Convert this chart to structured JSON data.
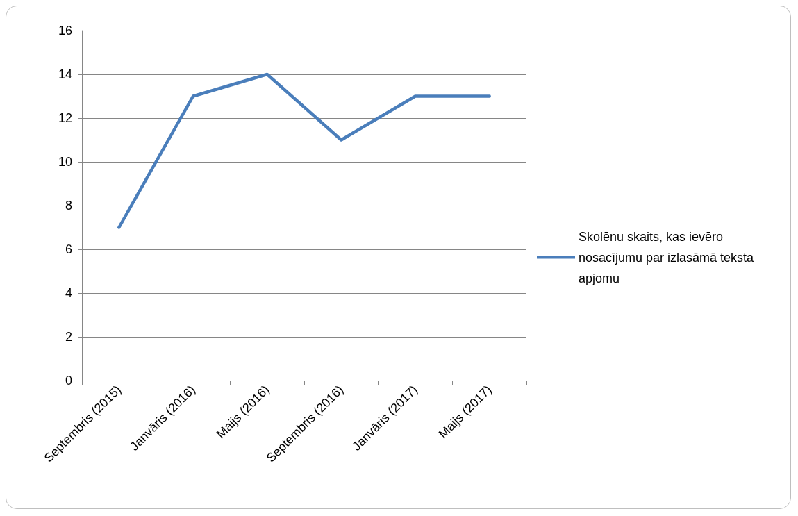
{
  "chart_data": {
    "type": "line",
    "categories": [
      "Septembris (2015)",
      "Janvāris (2016)",
      "Maijs (2016)",
      "Septembris (2016)",
      "Janvāris (2017)",
      "Maijs (2017)"
    ],
    "series": [
      {
        "name": "Skolēnu skaits, kas ievēro nosacījumu par izlasāmā teksta apjomu",
        "color": "#4a7ebb",
        "values": [
          7,
          13,
          14,
          11,
          13,
          13
        ]
      }
    ],
    "ylim": [
      0,
      16
    ],
    "yticks": [
      0,
      2,
      4,
      6,
      8,
      10,
      12,
      14,
      16
    ],
    "grid": "y",
    "legend": "right",
    "marker": "none",
    "line_style": "solid"
  }
}
